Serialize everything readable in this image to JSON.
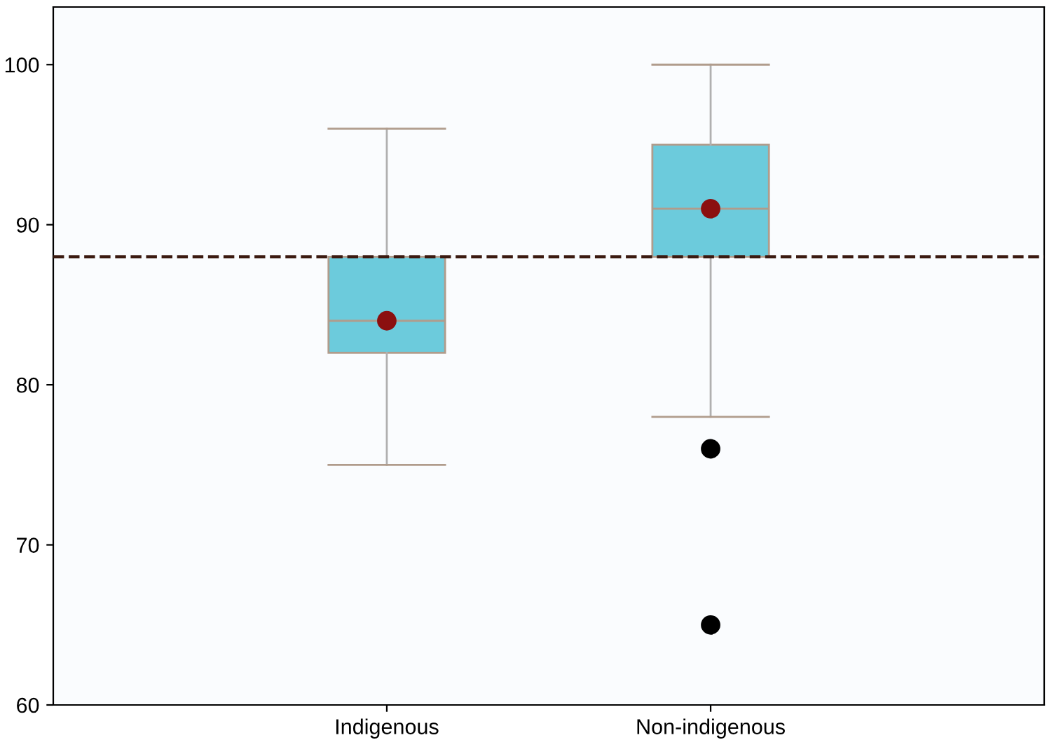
{
  "chart_data": {
    "type": "box",
    "categories": [
      "Indigenous",
      "Non-indigenous"
    ],
    "color": "#6ccbdc",
    "boxes": [
      {
        "low": 75,
        "q1": 82,
        "median": 84,
        "q3": 88,
        "high": 96,
        "mean": 84
      },
      {
        "low": 78,
        "q1": 88,
        "median": 91,
        "q3": 95,
        "high": 100,
        "mean": 91,
        "outliers": [
          76,
          65
        ]
      }
    ],
    "ylim": [
      60,
      103.6
    ],
    "yticks": [
      60,
      70,
      80,
      90,
      100
    ],
    "ref_lines": [
      {
        "axis": "y",
        "value": 88,
        "color": "#3b1a10",
        "line_style": "dashed"
      }
    ]
  }
}
